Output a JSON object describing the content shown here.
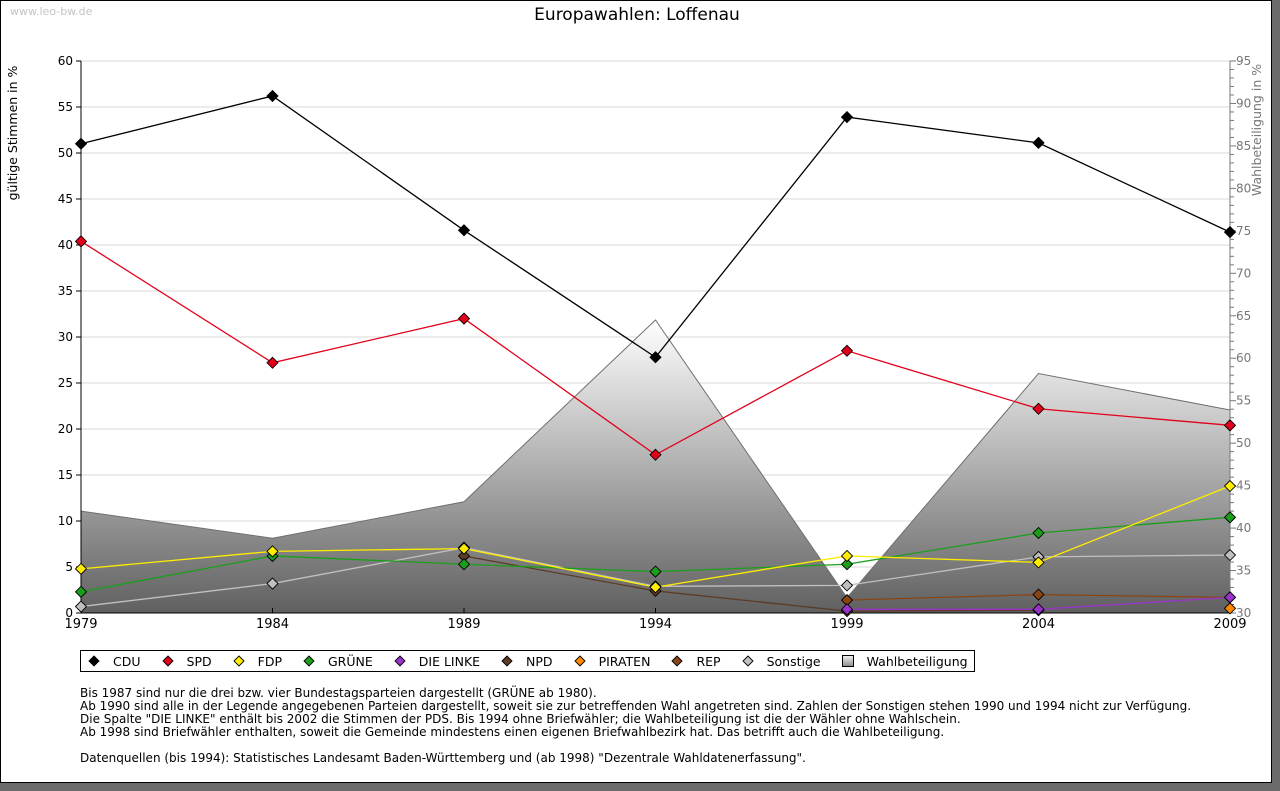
{
  "watermark": "www.leo-bw.de",
  "chart_data": {
    "type": "line",
    "title": "Europawahlen: Loffenau",
    "xlabel": "",
    "ylabel": "gültige Stimmen in %",
    "y2label": "Wahlbeteiligung in %",
    "x": [
      1979,
      1984,
      1989,
      1994,
      1999,
      2004,
      2009
    ],
    "ylim": [
      0,
      60
    ],
    "y2lim": [
      30,
      95
    ],
    "yticks": [
      0,
      5,
      10,
      15,
      20,
      25,
      30,
      35,
      40,
      45,
      50,
      55,
      60
    ],
    "y2ticks": [
      30,
      35,
      40,
      45,
      50,
      55,
      60,
      65,
      70,
      75,
      80,
      85,
      90,
      95
    ],
    "grid": true,
    "legend_position": "bottom",
    "series": [
      {
        "name": "CDU",
        "color": "#000000",
        "values": [
          51.0,
          56.2,
          41.6,
          27.8,
          53.9,
          51.1,
          41.4
        ]
      },
      {
        "name": "SPD",
        "color": "#e2001a",
        "values": [
          40.4,
          27.2,
          32.0,
          17.2,
          28.5,
          22.2,
          20.4
        ]
      },
      {
        "name": "FDP",
        "color": "#ffed00",
        "values": [
          4.8,
          6.7,
          7.0,
          2.8,
          6.2,
          5.5,
          13.8
        ]
      },
      {
        "name": "GRÜNE",
        "color": "#1a9f1a",
        "values": [
          2.3,
          6.2,
          5.3,
          4.5,
          5.3,
          8.7,
          10.4
        ]
      },
      {
        "name": "DIE LINKE",
        "color": "#9933cc",
        "values": [
          null,
          null,
          null,
          null,
          0.4,
          0.4,
          1.7
        ]
      },
      {
        "name": "NPD",
        "color": "#5c3b26",
        "values": [
          null,
          null,
          6.2,
          2.4,
          0.2,
          0.3,
          null
        ]
      },
      {
        "name": "PIRATEN",
        "color": "#ff8800",
        "values": [
          null,
          null,
          null,
          null,
          null,
          null,
          0.5
        ]
      },
      {
        "name": "REP",
        "color": "#8b4513",
        "values": [
          null,
          null,
          null,
          null,
          1.4,
          2.0,
          1.7
        ]
      },
      {
        "name": "Sonstige",
        "color": "#c0c0c0",
        "values": [
          0.7,
          3.2,
          7.1,
          2.9,
          3.0,
          6.1,
          6.3
        ]
      }
    ],
    "area_series": {
      "name": "Wahlbeteiligung",
      "axis": "right",
      "values": [
        42.0,
        38.8,
        43.1,
        64.5,
        31.8,
        58.2,
        53.9
      ]
    }
  },
  "legend": [
    {
      "label": "CDU",
      "color": "#000000",
      "shape": "diamond"
    },
    {
      "label": "SPD",
      "color": "#e2001a",
      "shape": "diamond"
    },
    {
      "label": "FDP",
      "color": "#ffed00",
      "shape": "diamond"
    },
    {
      "label": "GRÜNE",
      "color": "#1a9f1a",
      "shape": "diamond"
    },
    {
      "label": "DIE LINKE",
      "color": "#9933cc",
      "shape": "diamond"
    },
    {
      "label": "NPD",
      "color": "#5c3b26",
      "shape": "diamond"
    },
    {
      "label": "PIRATEN",
      "color": "#ff8800",
      "shape": "diamond"
    },
    {
      "label": "REP",
      "color": "#8b4513",
      "shape": "diamond"
    },
    {
      "label": "Sonstige",
      "color": "#c0c0c0",
      "shape": "diamond"
    },
    {
      "label": "Wahlbeteiligung",
      "color": "#999999",
      "shape": "square"
    }
  ],
  "notes": [
    "Bis 1987 sind nur die drei bzw. vier Bundestagsparteien dargestellt (GRÜNE ab 1980).",
    "Ab 1990 sind alle in der Legende angegebenen Parteien dargestellt, soweit sie zur betreffenden Wahl angetreten sind. Zahlen der Sonstigen stehen 1990 und 1994 nicht zur Verfügung.",
    "Die Spalte \"DIE LINKE\" enthält bis 2002 die Stimmen der PDS. Bis 1994 ohne Briefwähler; die Wahlbeteiligung ist die der Wähler ohne Wahlschein.",
    "Ab 1998 sind Briefwähler enthalten, soweit die Gemeinde mindestens einen eigenen Briefwahlbezirk hat. Das betrifft auch die Wahlbeteiligung.",
    "",
    "Datenquellen (bis 1994): Statistisches Landesamt Baden-Württemberg und (ab 1998) \"Dezentrale Wahldatenerfassung\"."
  ]
}
